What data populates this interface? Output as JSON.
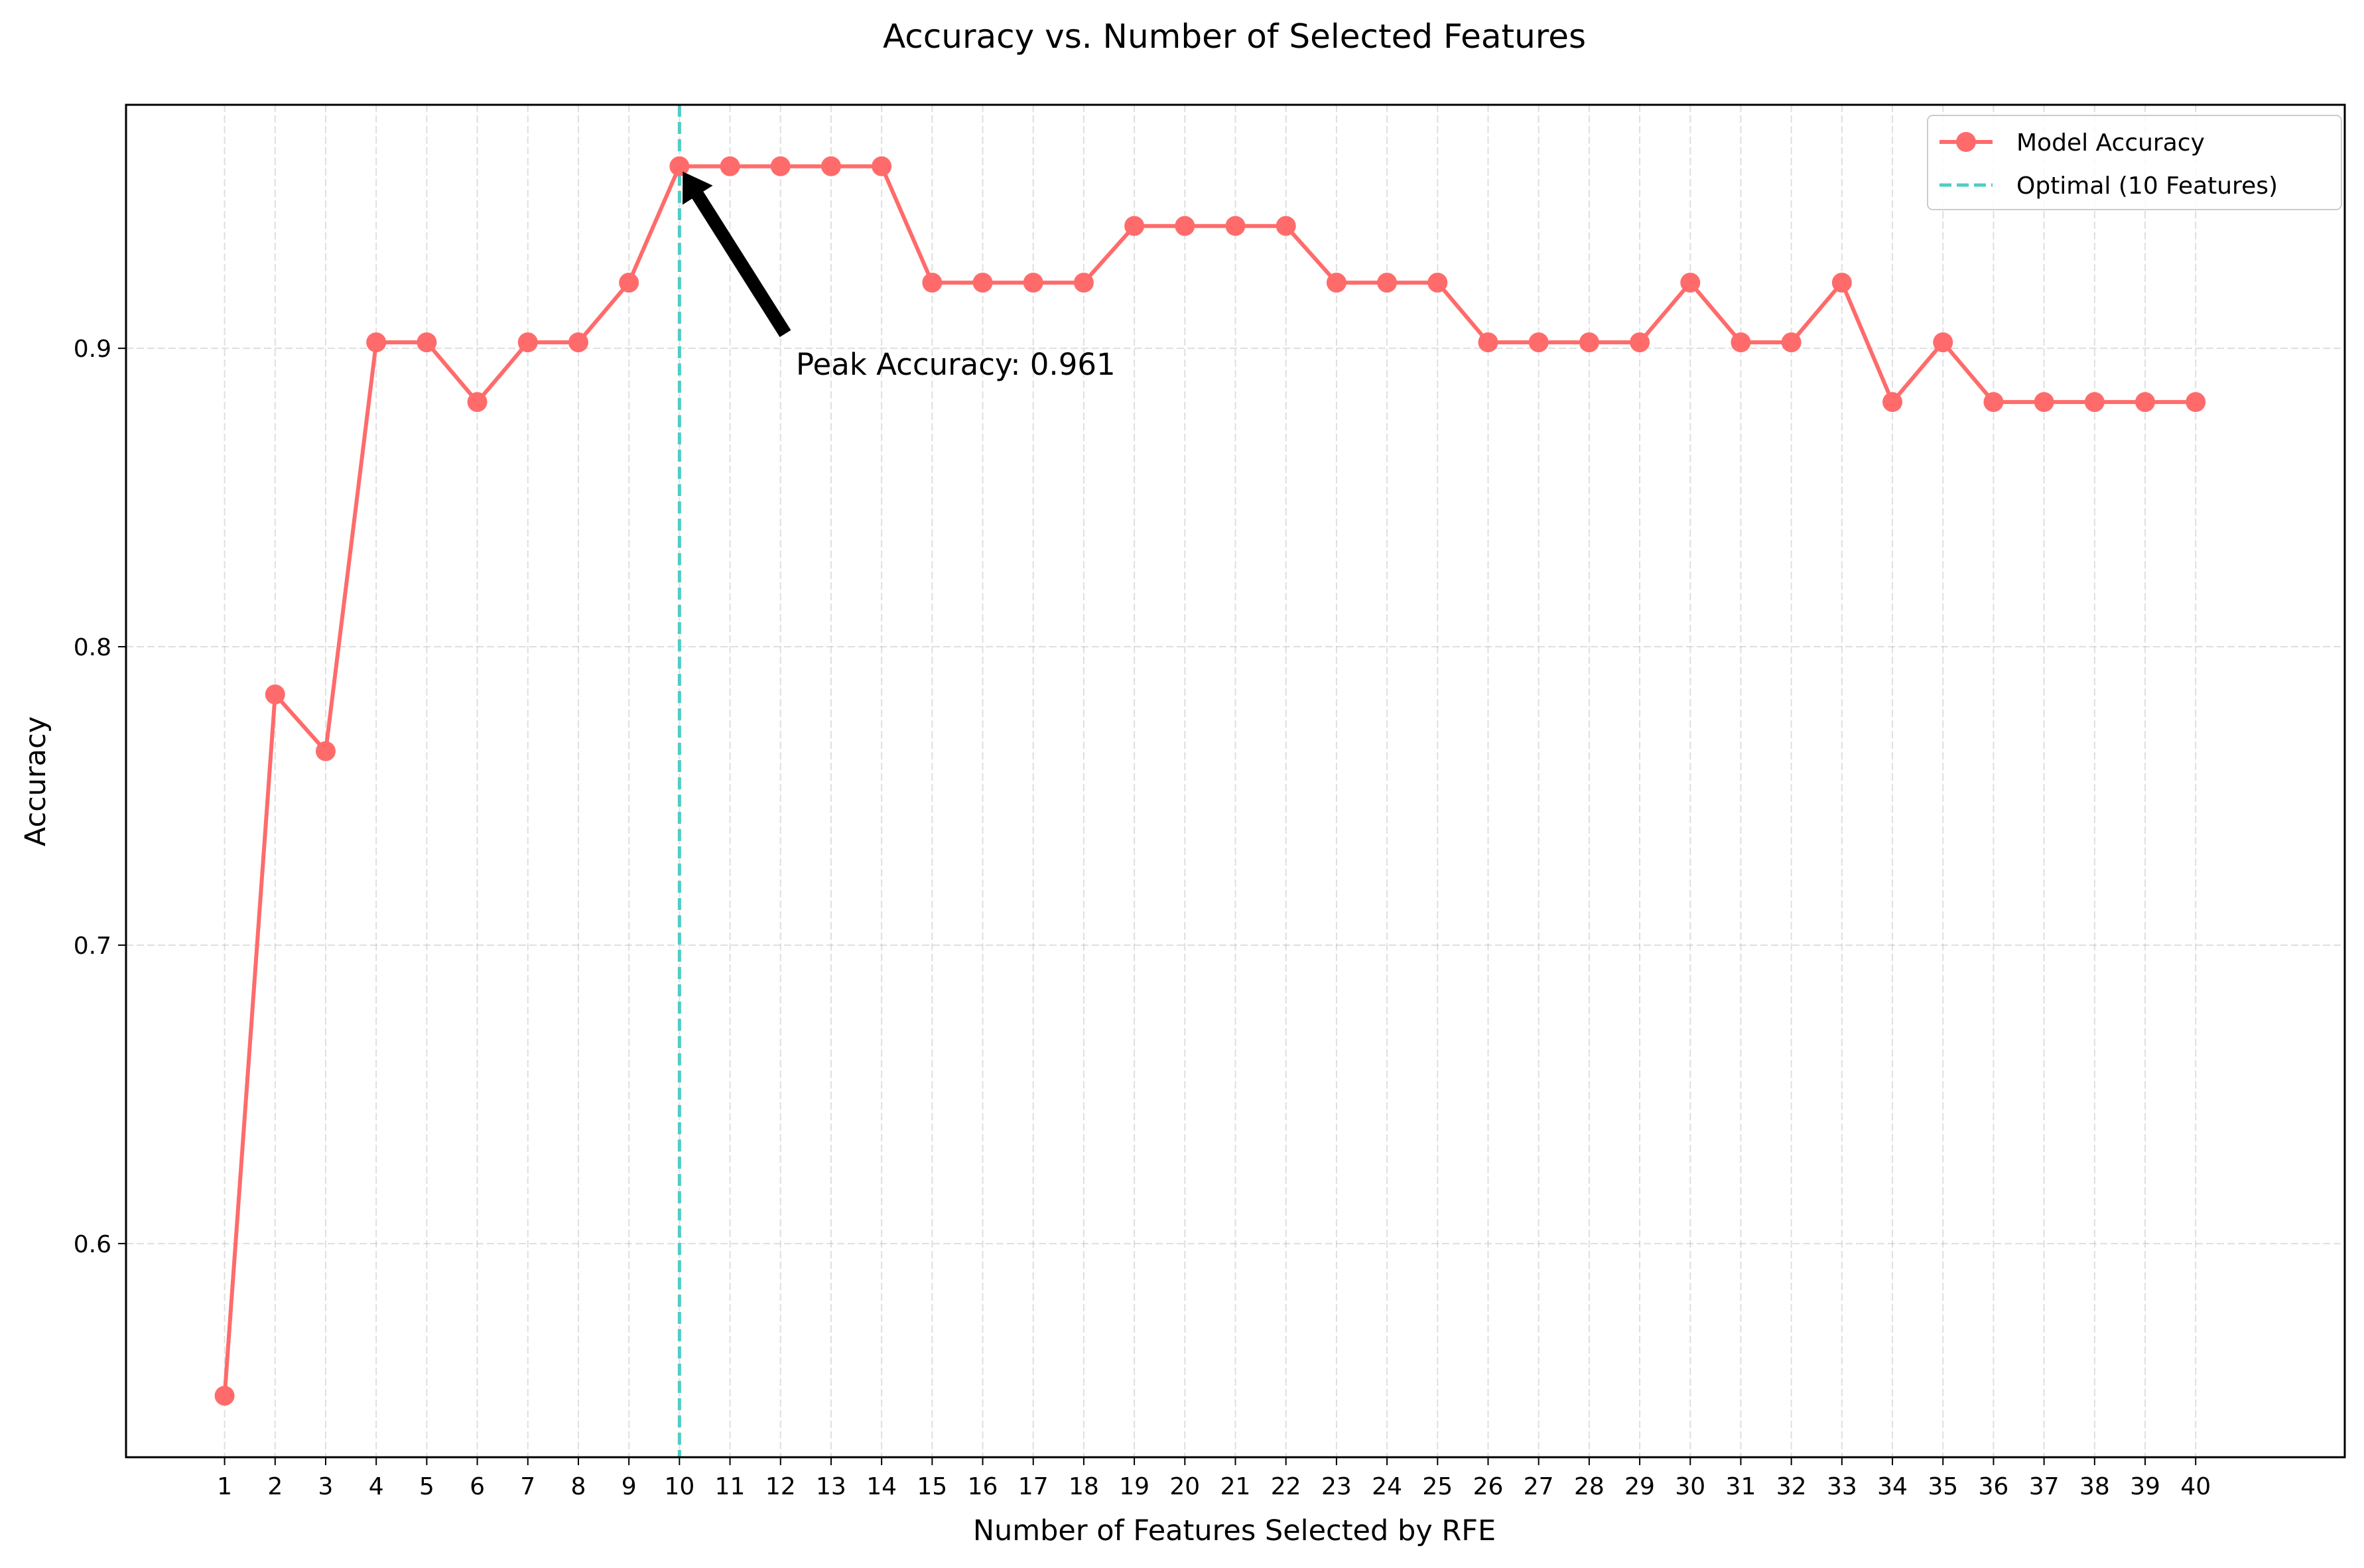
{
  "chart_data": {
    "type": "line",
    "title": "Accuracy vs. Number of Selected Features",
    "xlabel": "Number of Features Selected by RFE",
    "ylabel": "Accuracy",
    "x": [
      1,
      2,
      3,
      4,
      5,
      6,
      7,
      8,
      9,
      10,
      11,
      12,
      13,
      14,
      15,
      16,
      17,
      18,
      19,
      20,
      21,
      22,
      23,
      24,
      25,
      26,
      27,
      28,
      29,
      30,
      31,
      32,
      33,
      34,
      35,
      36,
      37,
      38,
      39,
      40
    ],
    "series": [
      {
        "name": "Model Accuracy",
        "color": "#ff6b6b",
        "values": [
          0.549,
          0.784,
          0.765,
          0.902,
          0.902,
          0.882,
          0.902,
          0.902,
          0.922,
          0.961,
          0.961,
          0.961,
          0.961,
          0.961,
          0.922,
          0.922,
          0.922,
          0.922,
          0.941,
          0.941,
          0.941,
          0.941,
          0.922,
          0.922,
          0.922,
          0.902,
          0.902,
          0.902,
          0.902,
          0.922,
          0.902,
          0.902,
          0.922,
          0.882,
          0.902,
          0.882,
          0.882,
          0.882,
          0.882,
          0.882
        ]
      }
    ],
    "reference_line": {
      "name": "Optimal (10 Features)",
      "x": 10,
      "color": "#4ecdc4",
      "style": "dashed"
    },
    "annotation": {
      "text": "Peak Accuracy: 0.961",
      "x": 10,
      "y": 0.961
    },
    "xlim": [
      -0.95,
      42.95
    ],
    "ylim": [
      0.5284,
      0.9816
    ],
    "yticks": [
      0.6,
      0.7,
      0.8,
      0.9
    ],
    "ytick_labels": [
      "0.6",
      "0.7",
      "0.8",
      "0.9"
    ],
    "grid": true,
    "legend_position": "top-right"
  }
}
